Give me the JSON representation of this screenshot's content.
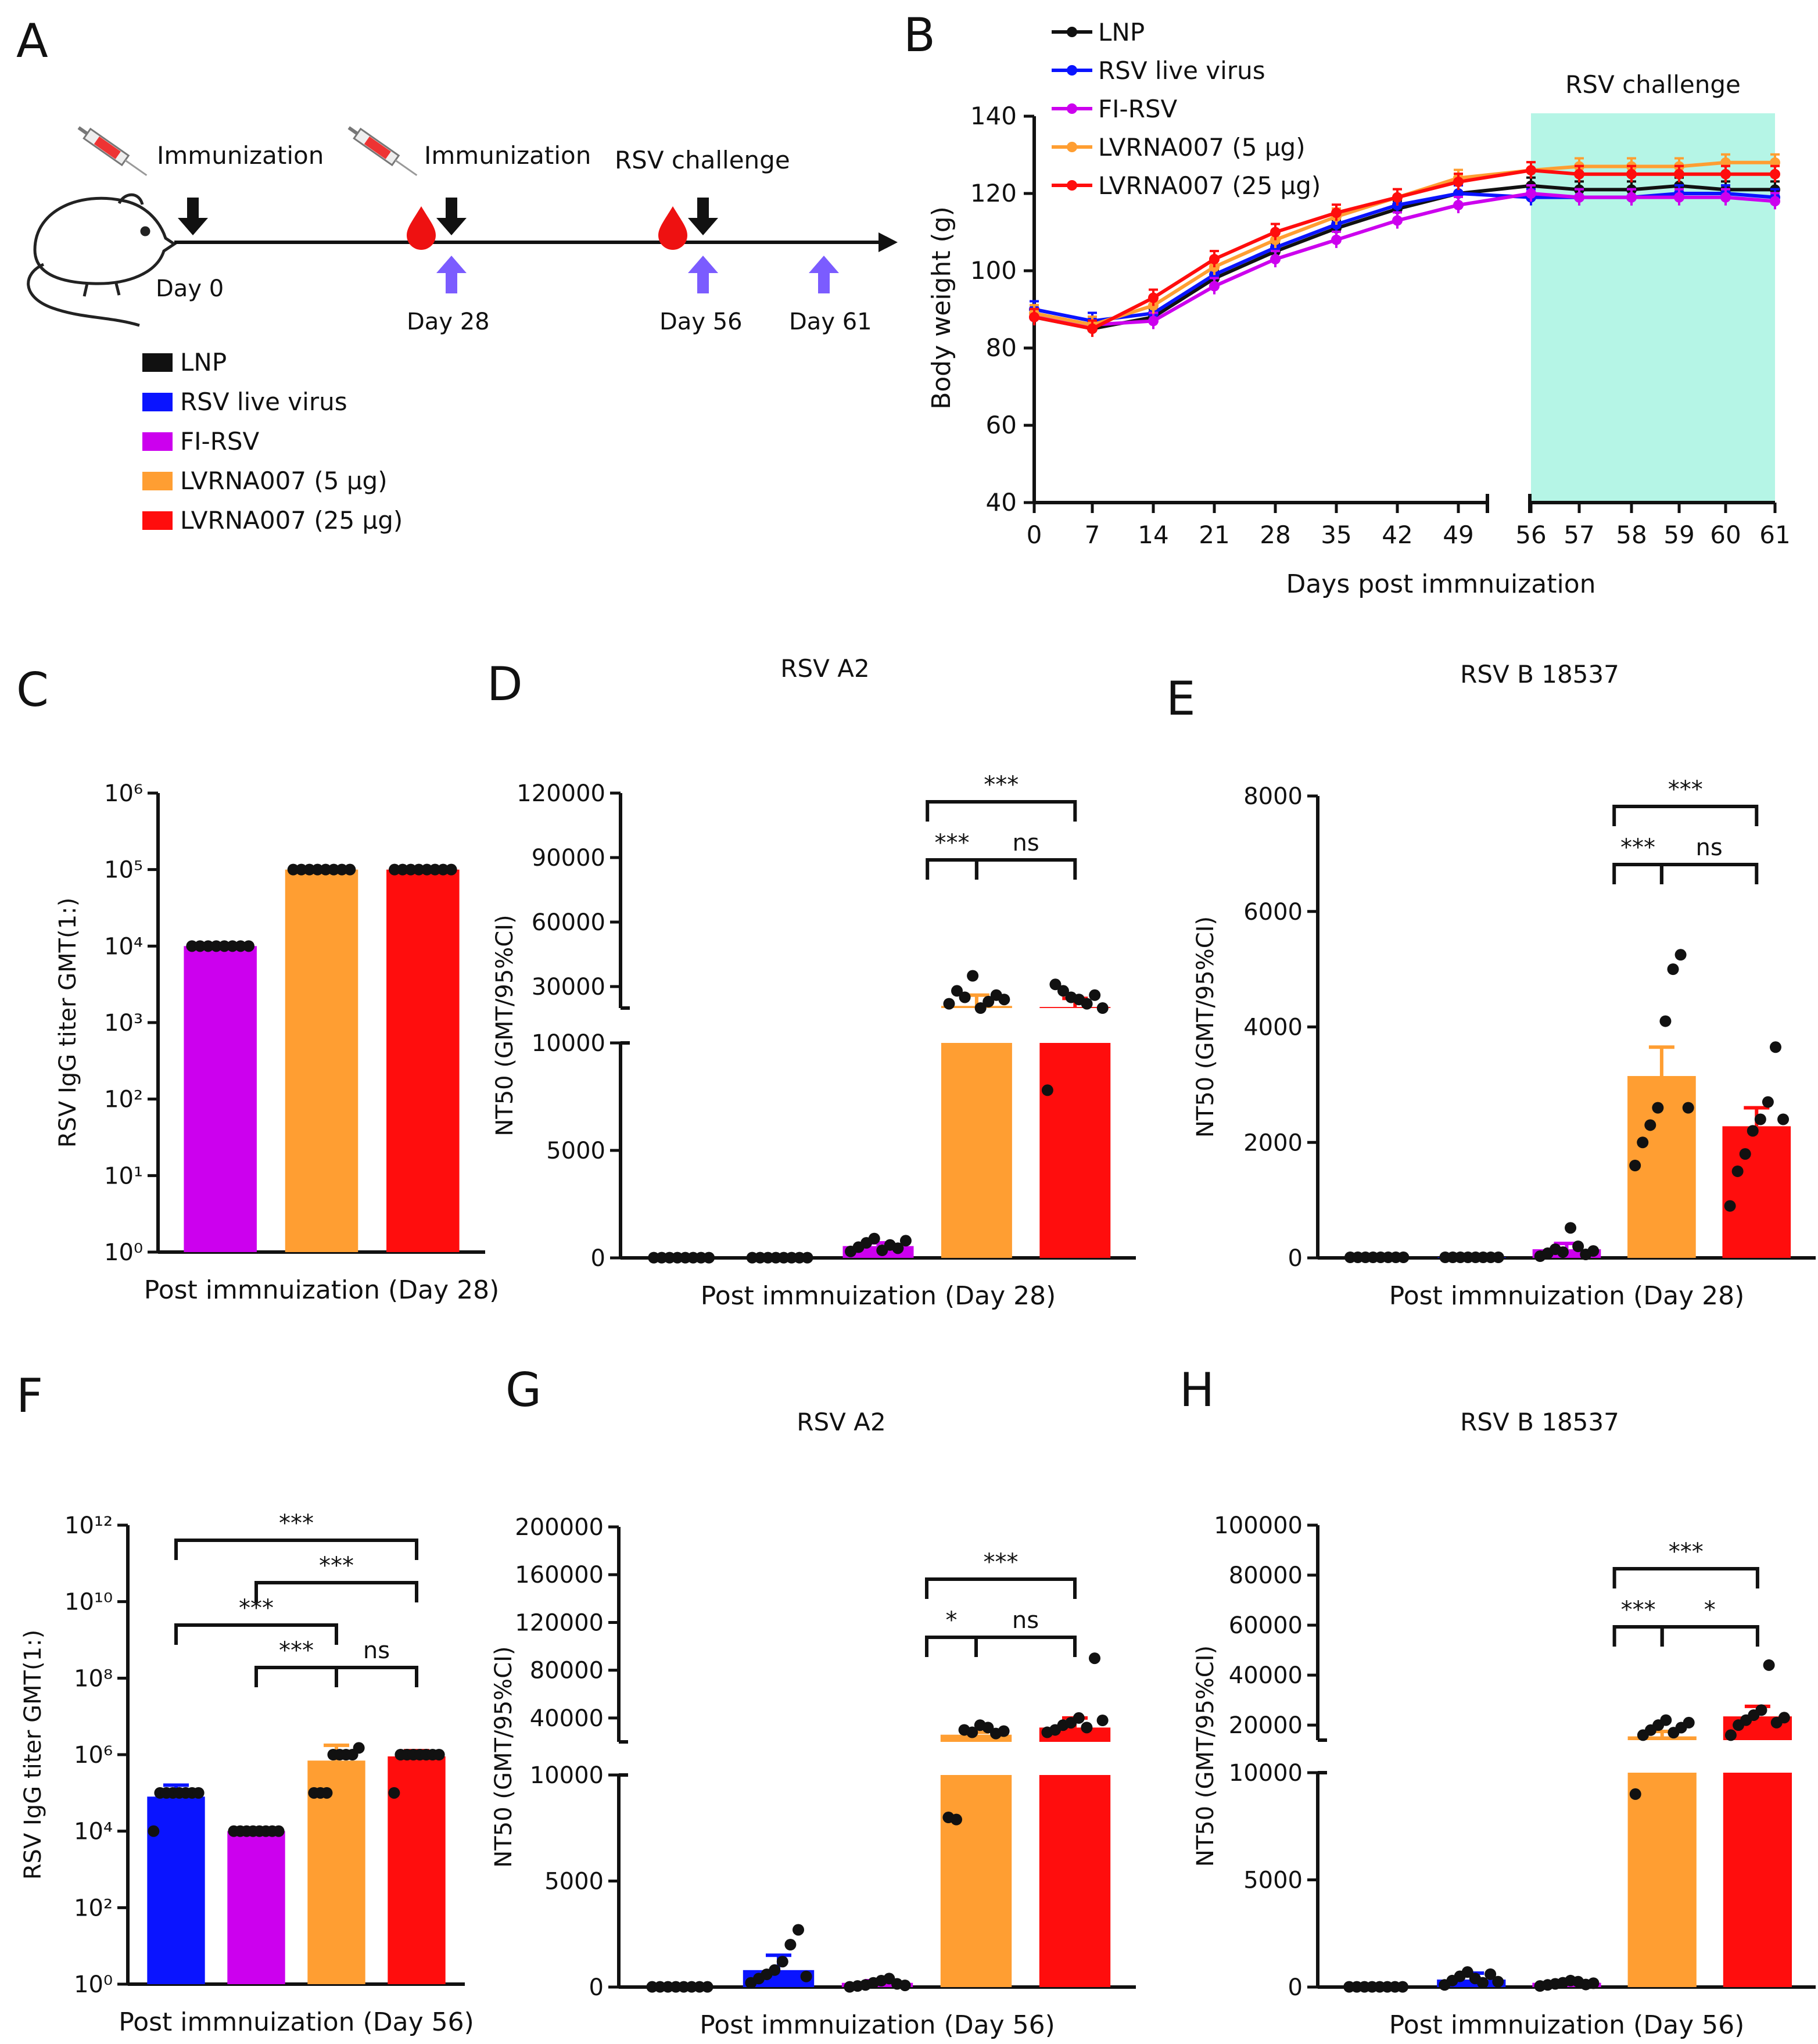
{
  "colors": {
    "LNP": "#111111",
    "RSV live virus": "#0a14ff",
    "FI-RSV": "#cc00ee",
    "LVRNA007 (5 μg)": "#ff9e32",
    "LVRNA007 (25 μg)": "#ff0d0d",
    "challenge_shade": "#b5f5e6",
    "arrow_blue": "#7b5cff",
    "drop": "#ee1111"
  },
  "panel_letters": [
    "A",
    "B",
    "C",
    "D",
    "E",
    "F",
    "G",
    "H"
  ],
  "panelA": {
    "events": [
      {
        "label": "Immunization",
        "icons": [
          "syringe-icon"
        ]
      },
      {
        "label": "Immunization",
        "icons": [
          "syringe-icon",
          "blood-drop-icon"
        ]
      },
      {
        "label": "RSV challenge",
        "icons": [
          "blood-drop-icon"
        ]
      }
    ],
    "days": [
      "Day 0",
      "Day 28",
      "Day 56",
      "Day 61"
    ],
    "legend": [
      "LNP",
      "RSV live virus",
      "FI-RSV",
      "LVRNA007 (5 μg)",
      "LVRNA007 (25 μg)"
    ]
  },
  "chart_data": [
    {
      "id": "B",
      "type": "line",
      "x": [
        0,
        7,
        14,
        21,
        28,
        35,
        42,
        49,
        56,
        57,
        58,
        59,
        60,
        61
      ],
      "x_ticks": [
        "0",
        "7",
        "14",
        "21",
        "28",
        "35",
        "42",
        "49",
        "56",
        "57",
        "58",
        "59",
        "60",
        "61"
      ],
      "xlabel": "Days post immnuization",
      "ylabel": "Body weight (g)",
      "ylim": [
        40,
        140
      ],
      "y_ticks": [
        40,
        60,
        80,
        100,
        120,
        140
      ],
      "x_axis_break_between": [
        49,
        56
      ],
      "shaded_region": {
        "from": 56,
        "to": 61,
        "label": "RSV challenge"
      },
      "series": [
        {
          "name": "LNP",
          "values": [
            88,
            85,
            88,
            98,
            105,
            111,
            116,
            120,
            122,
            121,
            121,
            122,
            121,
            121
          ]
        },
        {
          "name": "RSV live virus",
          "values": [
            90,
            87,
            89,
            99,
            106,
            112,
            117,
            120,
            119,
            119,
            119,
            120,
            120,
            119
          ]
        },
        {
          "name": "FI-RSV",
          "values": [
            88,
            86,
            87,
            96,
            103,
            108,
            113,
            117,
            120,
            119,
            119,
            119,
            119,
            118
          ]
        },
        {
          "name": "LVRNA007 (5 μg)",
          "values": [
            89,
            86,
            91,
            101,
            108,
            114,
            119,
            124,
            126,
            127,
            127,
            127,
            128,
            128
          ]
        },
        {
          "name": "LVRNA007 (25 μg)",
          "values": [
            88,
            85,
            93,
            103,
            110,
            115,
            119,
            123,
            126,
            125,
            125,
            125,
            125,
            125
          ]
        }
      ],
      "legend": [
        "LNP",
        "RSV live virus",
        "FI-RSV",
        "LVRNA007 (5 μg)",
        "LVRNA007 (25 μg)"
      ]
    },
    {
      "id": "C",
      "type": "bar",
      "scale": "log",
      "title": "",
      "xlabel": "Post immnuization (Day 28)",
      "ylabel": "RSV IgG titer GMT(1:)",
      "y_ticks": [
        "10⁰",
        "10¹",
        "10²",
        "10³",
        "10⁴",
        "10⁵",
        "10⁶"
      ],
      "ylim_log10": [
        0,
        6
      ],
      "categories": [
        "FI-RSV",
        "LVRNA007 (5 μg)",
        "LVRNA007 (25 μg)"
      ],
      "values": [
        10000,
        100000,
        100000
      ],
      "points": [
        [
          10000,
          10000,
          10000,
          10000,
          10000,
          10000,
          10000,
          10000
        ],
        [
          100000,
          100000,
          100000,
          100000,
          100000,
          100000,
          100000,
          100000
        ],
        [
          100000,
          100000,
          100000,
          100000,
          100000,
          100000,
          100000,
          100000
        ]
      ],
      "significance": []
    },
    {
      "id": "D",
      "type": "bar",
      "scale": "broken",
      "title": "RSV A2",
      "xlabel": "Post immnuization (Day 28)",
      "ylabel": "NT50 (GMT/95%CI)",
      "y_ticks": [
        0,
        5000,
        10000,
        30000,
        60000,
        90000,
        120000
      ],
      "axis_break": {
        "lower_max": 10000,
        "upper_min": 20000,
        "upper_max": 120000
      },
      "categories": [
        "LNP",
        "RSV live virus",
        "FI-RSV",
        "LVRNA007 (5 μg)",
        "LVRNA007 (25 μg)"
      ],
      "values": [
        10,
        10,
        550,
        21000,
        20500
      ],
      "error": [
        0,
        0,
        150,
        5000,
        4000
      ],
      "points": [
        [
          10,
          10,
          10,
          10,
          10,
          10,
          10,
          10
        ],
        [
          10,
          10,
          10,
          10,
          10,
          10,
          10,
          10
        ],
        [
          300,
          500,
          700,
          900,
          350,
          600,
          450,
          800
        ],
        [
          22000,
          28000,
          25000,
          35000,
          18000,
          23000,
          26000,
          24000
        ],
        [
          7800,
          31000,
          28000,
          25000,
          24000,
          22000,
          26000,
          20000
        ]
      ],
      "significance": [
        {
          "from": 3,
          "to": 4,
          "label": "ns",
          "level": 0
        },
        {
          "from": 2.5,
          "to": 3,
          "label": "***",
          "level": 0
        },
        {
          "from": 2.5,
          "to": 4,
          "label": "***",
          "level": 1
        }
      ]
    },
    {
      "id": "E",
      "type": "bar",
      "scale": "linear",
      "title": "RSV B 18537",
      "xlabel": "Post immnuization (Day 28)",
      "ylabel": "NT50 (GMT/95%CI)",
      "y_ticks": [
        0,
        2000,
        4000,
        6000,
        8000
      ],
      "ylim": [
        0,
        8000
      ],
      "categories": [
        "LNP",
        "RSV live virus",
        "FI-RSV",
        "LVRNA007 (5 μg)",
        "LVRNA007 (25 μg)"
      ],
      "values": [
        10,
        10,
        150,
        3150,
        2280
      ],
      "error": [
        0,
        0,
        100,
        500,
        320
      ],
      "points": [
        [
          10,
          10,
          10,
          10,
          10,
          10,
          10,
          10
        ],
        [
          10,
          10,
          10,
          10,
          10,
          10,
          10,
          10
        ],
        [
          30,
          80,
          150,
          100,
          520,
          200,
          60,
          120
        ],
        [
          1600,
          2000,
          2300,
          2600,
          4100,
          5000,
          5250,
          2600
        ],
        [
          900,
          1500,
          1800,
          2200,
          2400,
          2700,
          3650,
          2400
        ]
      ],
      "significance": [
        {
          "from": 3,
          "to": 4,
          "label": "ns",
          "level": 0
        },
        {
          "from": 2.5,
          "to": 3,
          "label": "***",
          "level": 0
        },
        {
          "from": 2.5,
          "to": 4,
          "label": "***",
          "level": 1
        }
      ]
    },
    {
      "id": "F",
      "type": "bar",
      "scale": "log",
      "title": "",
      "xlabel": "Post immnuization (Day 56)",
      "ylabel": "RSV IgG titer GMT(1:)",
      "y_ticks": [
        "10⁰",
        "10²",
        "10⁴",
        "10⁶",
        "10⁸",
        "10¹⁰",
        "10¹²"
      ],
      "ylim_log10": [
        0,
        12
      ],
      "categories": [
        "RSV live virus",
        "FI-RSV",
        "LVRNA007 (5 μg)",
        "LVRNA007 (25 μg)"
      ],
      "values": [
        80000,
        10000,
        700000,
        900000
      ],
      "error": [
        0.3,
        0,
        0.4,
        0.15
      ],
      "points": [
        [
          10000,
          100000,
          100000,
          100000,
          100000,
          100000,
          100000,
          100000
        ],
        [
          10000,
          10000,
          10000,
          10000,
          10000,
          10000,
          10000,
          10000
        ],
        [
          100000,
          100000,
          100000,
          1000000,
          1000000,
          1000000,
          1000000,
          1500000
        ],
        [
          100000,
          1000000,
          1000000,
          1000000,
          1000000,
          1000000,
          1000000,
          1000000
        ]
      ],
      "significance": [
        {
          "from": 2,
          "to": 3,
          "label": "ns",
          "level": 0
        },
        {
          "from": 1,
          "to": 2,
          "label": "***",
          "level": 0
        },
        {
          "from": 0,
          "to": 2,
          "label": "***",
          "level": 1
        },
        {
          "from": 1,
          "to": 3,
          "label": "***",
          "level": 2
        },
        {
          "from": 0,
          "to": 3,
          "label": "***",
          "level": 3
        }
      ]
    },
    {
      "id": "G",
      "type": "bar",
      "scale": "broken",
      "title": "RSV A2",
      "xlabel": "Post immnuization (Day 56)",
      "ylabel": "NT50 (GMT/95%CI)",
      "y_ticks": [
        0,
        5000,
        10000,
        40000,
        80000,
        120000,
        160000,
        200000
      ],
      "axis_break": {
        "lower_max": 10000,
        "upper_min": 20000,
        "upper_max": 200000
      },
      "categories": [
        "LNP",
        "RSV live virus",
        "FI-RSV",
        "LVRNA007 (5 μg)",
        "LVRNA007 (25 μg)"
      ],
      "values": [
        10,
        800,
        200,
        26000,
        32000
      ],
      "error": [
        0,
        700,
        100,
        2000,
        8000
      ],
      "points": [
        [
          10,
          10,
          10,
          10,
          10,
          10,
          10,
          10
        ],
        [
          200,
          400,
          600,
          800,
          1200,
          2000,
          2700,
          500
        ],
        [
          10,
          50,
          100,
          200,
          300,
          400,
          150,
          80
        ],
        [
          8000,
          7900,
          30000,
          28000,
          34000,
          32000,
          27000,
          29000
        ],
        [
          28000,
          30000,
          34000,
          36000,
          40000,
          32000,
          90000,
          38000
        ]
      ],
      "significance": [
        {
          "from": 3,
          "to": 4,
          "label": "ns",
          "level": 0
        },
        {
          "from": 2.5,
          "to": 3,
          "label": "*",
          "level": 0
        },
        {
          "from": 2.5,
          "to": 4,
          "label": "***",
          "level": 1
        }
      ]
    },
    {
      "id": "H",
      "type": "bar",
      "scale": "broken",
      "title": "RSV B 18537",
      "xlabel": "Post immnuization (Day 56)",
      "ylabel": "NT50 (GMT/95%CI)",
      "y_ticks": [
        0,
        5000,
        10000,
        20000,
        40000,
        60000,
        80000,
        100000
      ],
      "axis_break": {
        "lower_max": 10000,
        "upper_min": 14000,
        "upper_max": 100000
      },
      "categories": [
        "LNP",
        "RSV live virus",
        "FI-RSV",
        "LVRNA007 (5 μg)",
        "LVRNA007 (25 μg)"
      ],
      "values": [
        10,
        350,
        200,
        15500,
        23500
      ],
      "error": [
        0,
        300,
        100,
        2000,
        4000
      ],
      "points": [
        [
          10,
          10,
          10,
          10,
          10,
          10,
          10,
          10
        ],
        [
          100,
          300,
          500,
          700,
          400,
          200,
          600,
          250
        ],
        [
          50,
          100,
          150,
          200,
          300,
          250,
          120,
          180
        ],
        [
          9000,
          16000,
          18000,
          20000,
          22000,
          17000,
          19000,
          21000
        ],
        [
          16000,
          20000,
          22000,
          24000,
          26000,
          44000,
          21000,
          23000
        ]
      ],
      "significance": [
        {
          "from": 3,
          "to": 4,
          "label": "*",
          "level": 0
        },
        {
          "from": 2.5,
          "to": 3,
          "label": "***",
          "level": 0
        },
        {
          "from": 2.5,
          "to": 4,
          "label": "***",
          "level": 1
        }
      ]
    }
  ]
}
